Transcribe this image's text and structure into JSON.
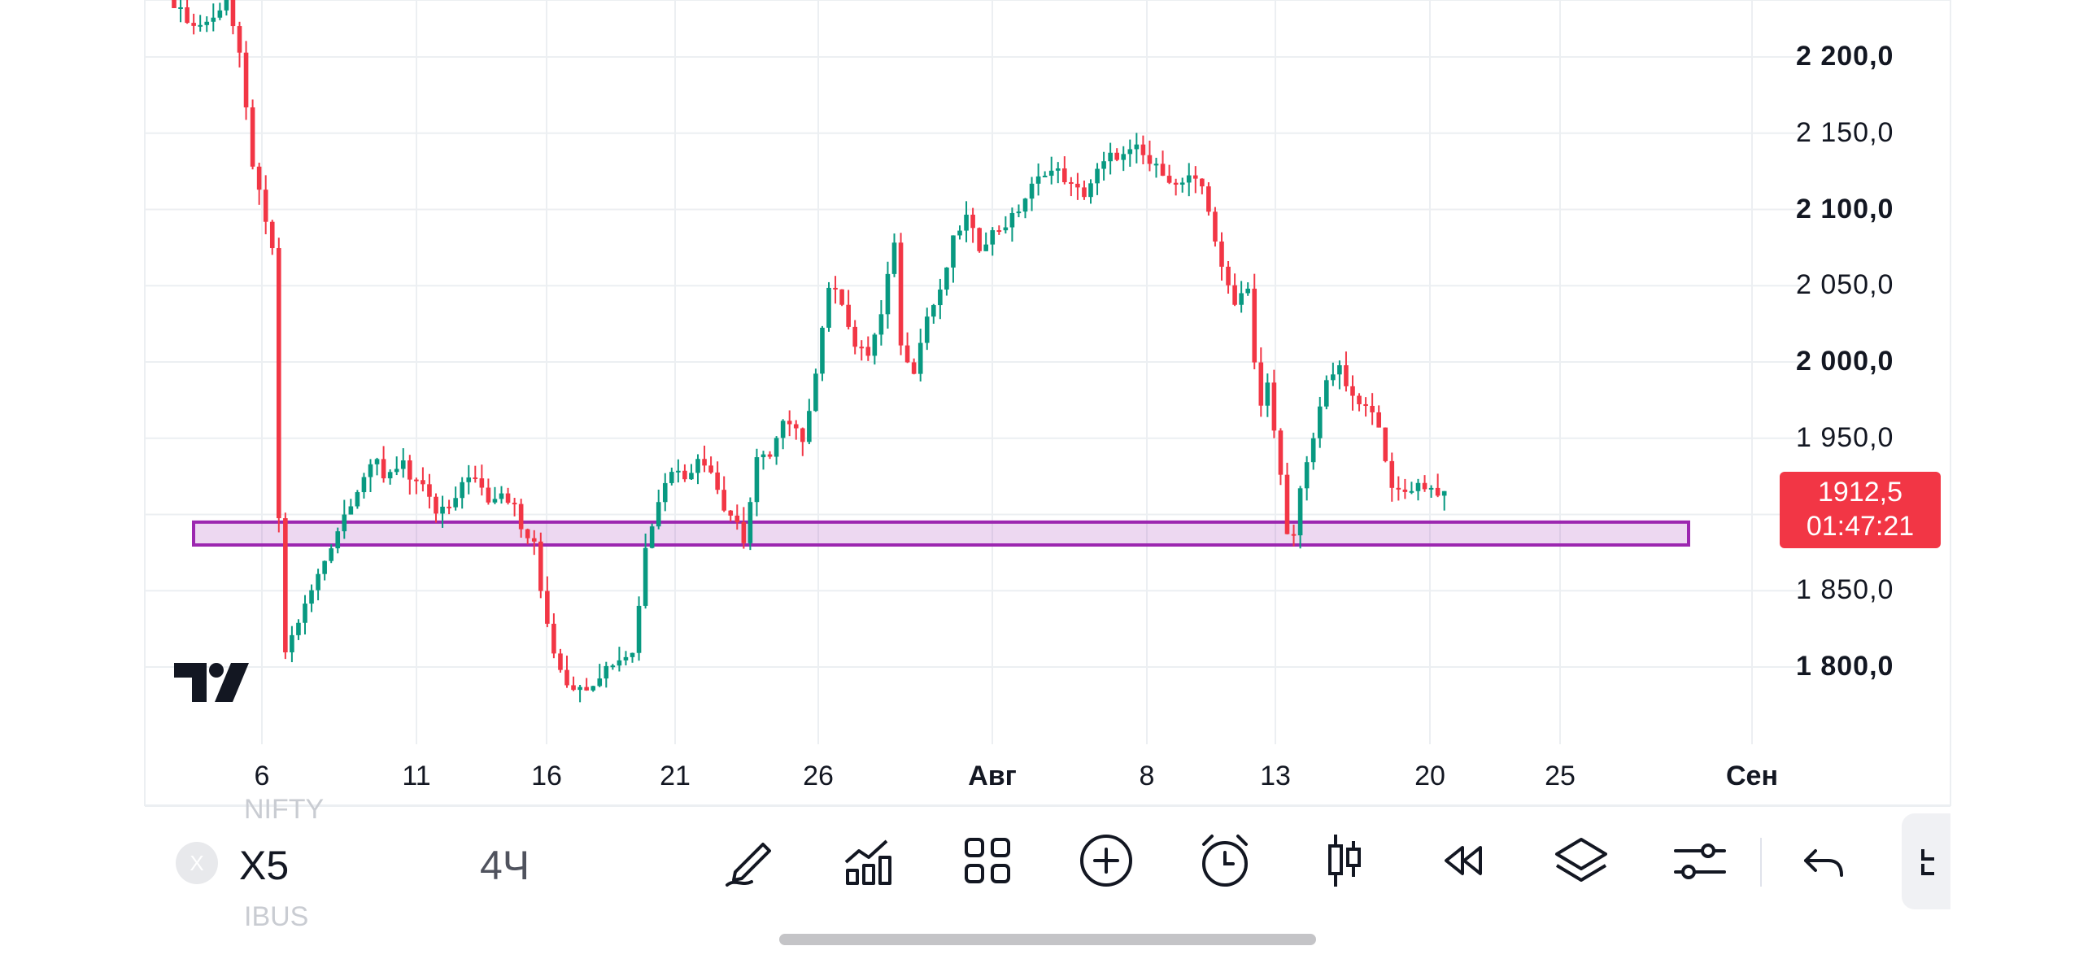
{
  "chart_data": {
    "type": "candlestick",
    "price_axis": {
      "labels": [
        "2 200,0",
        "2 150,0",
        "2 100,0",
        "2 050,0",
        "2 000,0",
        "1 950,0",
        "1 850,0",
        "1 800,0"
      ],
      "values": [
        2200,
        2150,
        2100,
        2050,
        2000,
        1950,
        1850,
        1800
      ],
      "bold": [
        true,
        false,
        true,
        false,
        true,
        false,
        false,
        true
      ]
    },
    "time_axis": {
      "labels": [
        "6",
        "11",
        "16",
        "21",
        "26",
        "Авг",
        "8",
        "13",
        "20",
        "25",
        "Сен"
      ],
      "bold": [
        false,
        false,
        false,
        false,
        false,
        true,
        false,
        false,
        false,
        false,
        true
      ]
    },
    "ylim": [
      1765,
      2237
    ],
    "current_price": "1912,5",
    "countdown": "01:47:21",
    "zone": {
      "low": 1880,
      "high": 1895,
      "color": "#9c27b0"
    },
    "colors": {
      "up": "#089981",
      "down": "#f23645",
      "grid": "#eceff2"
    },
    "path": [
      [
        0,
        2235
      ],
      [
        3,
        2220
      ],
      [
        6,
        2225
      ],
      [
        8,
        2240
      ],
      [
        10,
        2200
      ],
      [
        12,
        2130
      ],
      [
        14,
        2090
      ],
      [
        15,
        2075
      ],
      [
        16,
        1895
      ],
      [
        17,
        1810
      ],
      [
        19,
        1830
      ],
      [
        21,
        1850
      ],
      [
        24,
        1880
      ],
      [
        26,
        1900
      ],
      [
        29,
        1925
      ],
      [
        31,
        1935
      ],
      [
        32,
        1925
      ],
      [
        35,
        1935
      ],
      [
        36,
        1920
      ],
      [
        38,
        1920
      ],
      [
        40,
        1900
      ],
      [
        42,
        1905
      ],
      [
        44,
        1920
      ],
      [
        46,
        1925
      ],
      [
        48,
        1910
      ],
      [
        50,
        1915
      ],
      [
        52,
        1905
      ],
      [
        53,
        1890
      ],
      [
        55,
        1880
      ],
      [
        56,
        1850
      ],
      [
        58,
        1810
      ],
      [
        60,
        1790
      ],
      [
        62,
        1785
      ],
      [
        64,
        1790
      ],
      [
        66,
        1800
      ],
      [
        68,
        1805
      ],
      [
        70,
        1810
      ],
      [
        71,
        1840
      ],
      [
        72,
        1880
      ],
      [
        74,
        1910
      ],
      [
        76,
        1930
      ],
      [
        78,
        1925
      ],
      [
        80,
        1935
      ],
      [
        82,
        1930
      ],
      [
        84,
        1905
      ],
      [
        86,
        1895
      ],
      [
        87,
        1882
      ],
      [
        89,
        1935
      ],
      [
        91,
        1940
      ],
      [
        93,
        1960
      ],
      [
        95,
        1955
      ],
      [
        96,
        1945
      ],
      [
        98,
        1995
      ],
      [
        100,
        2050
      ],
      [
        102,
        2040
      ],
      [
        104,
        2010
      ],
      [
        106,
        2005
      ],
      [
        108,
        2030
      ],
      [
        110,
        2080
      ],
      [
        111,
        2010
      ],
      [
        113,
        1995
      ],
      [
        115,
        2030
      ],
      [
        117,
        2045
      ],
      [
        119,
        2080
      ],
      [
        121,
        2095
      ],
      [
        123,
        2075
      ],
      [
        125,
        2085
      ],
      [
        127,
        2090
      ],
      [
        129,
        2100
      ],
      [
        131,
        2115
      ],
      [
        133,
        2125
      ],
      [
        135,
        2125
      ],
      [
        137,
        2115
      ],
      [
        139,
        2110
      ],
      [
        141,
        2125
      ],
      [
        143,
        2135
      ],
      [
        145,
        2135
      ],
      [
        147,
        2140
      ],
      [
        149,
        2130
      ],
      [
        151,
        2125
      ],
      [
        153,
        2115
      ],
      [
        155,
        2120
      ],
      [
        157,
        2115
      ],
      [
        158,
        2100
      ],
      [
        160,
        2060
      ],
      [
        162,
        2040
      ],
      [
        164,
        2050
      ],
      [
        165,
        2000
      ],
      [
        166,
        1970
      ],
      [
        167,
        1985
      ],
      [
        169,
        1925
      ],
      [
        170,
        1890
      ],
      [
        171,
        1885
      ],
      [
        172,
        1915
      ],
      [
        174,
        1950
      ],
      [
        176,
        1990
      ],
      [
        178,
        1995
      ],
      [
        180,
        1975
      ],
      [
        182,
        1970
      ],
      [
        184,
        1960
      ],
      [
        186,
        1915
      ],
      [
        188,
        1915
      ],
      [
        190,
        1920
      ],
      [
        192,
        1917
      ],
      [
        194,
        1912.5
      ]
    ]
  },
  "logo": "TV",
  "toolbar": {
    "ghost_above": "NIFTY",
    "ghost_below": "IBUS",
    "symbol_initial": "X",
    "symbol": "X5",
    "interval": "4Ч",
    "icons": [
      "pencil-icon",
      "indicators-icon",
      "layouts-icon",
      "add-icon",
      "alert-icon",
      "candles-icon",
      "replay-icon",
      "layers-icon",
      "settings-icon",
      "undo-icon"
    ]
  }
}
